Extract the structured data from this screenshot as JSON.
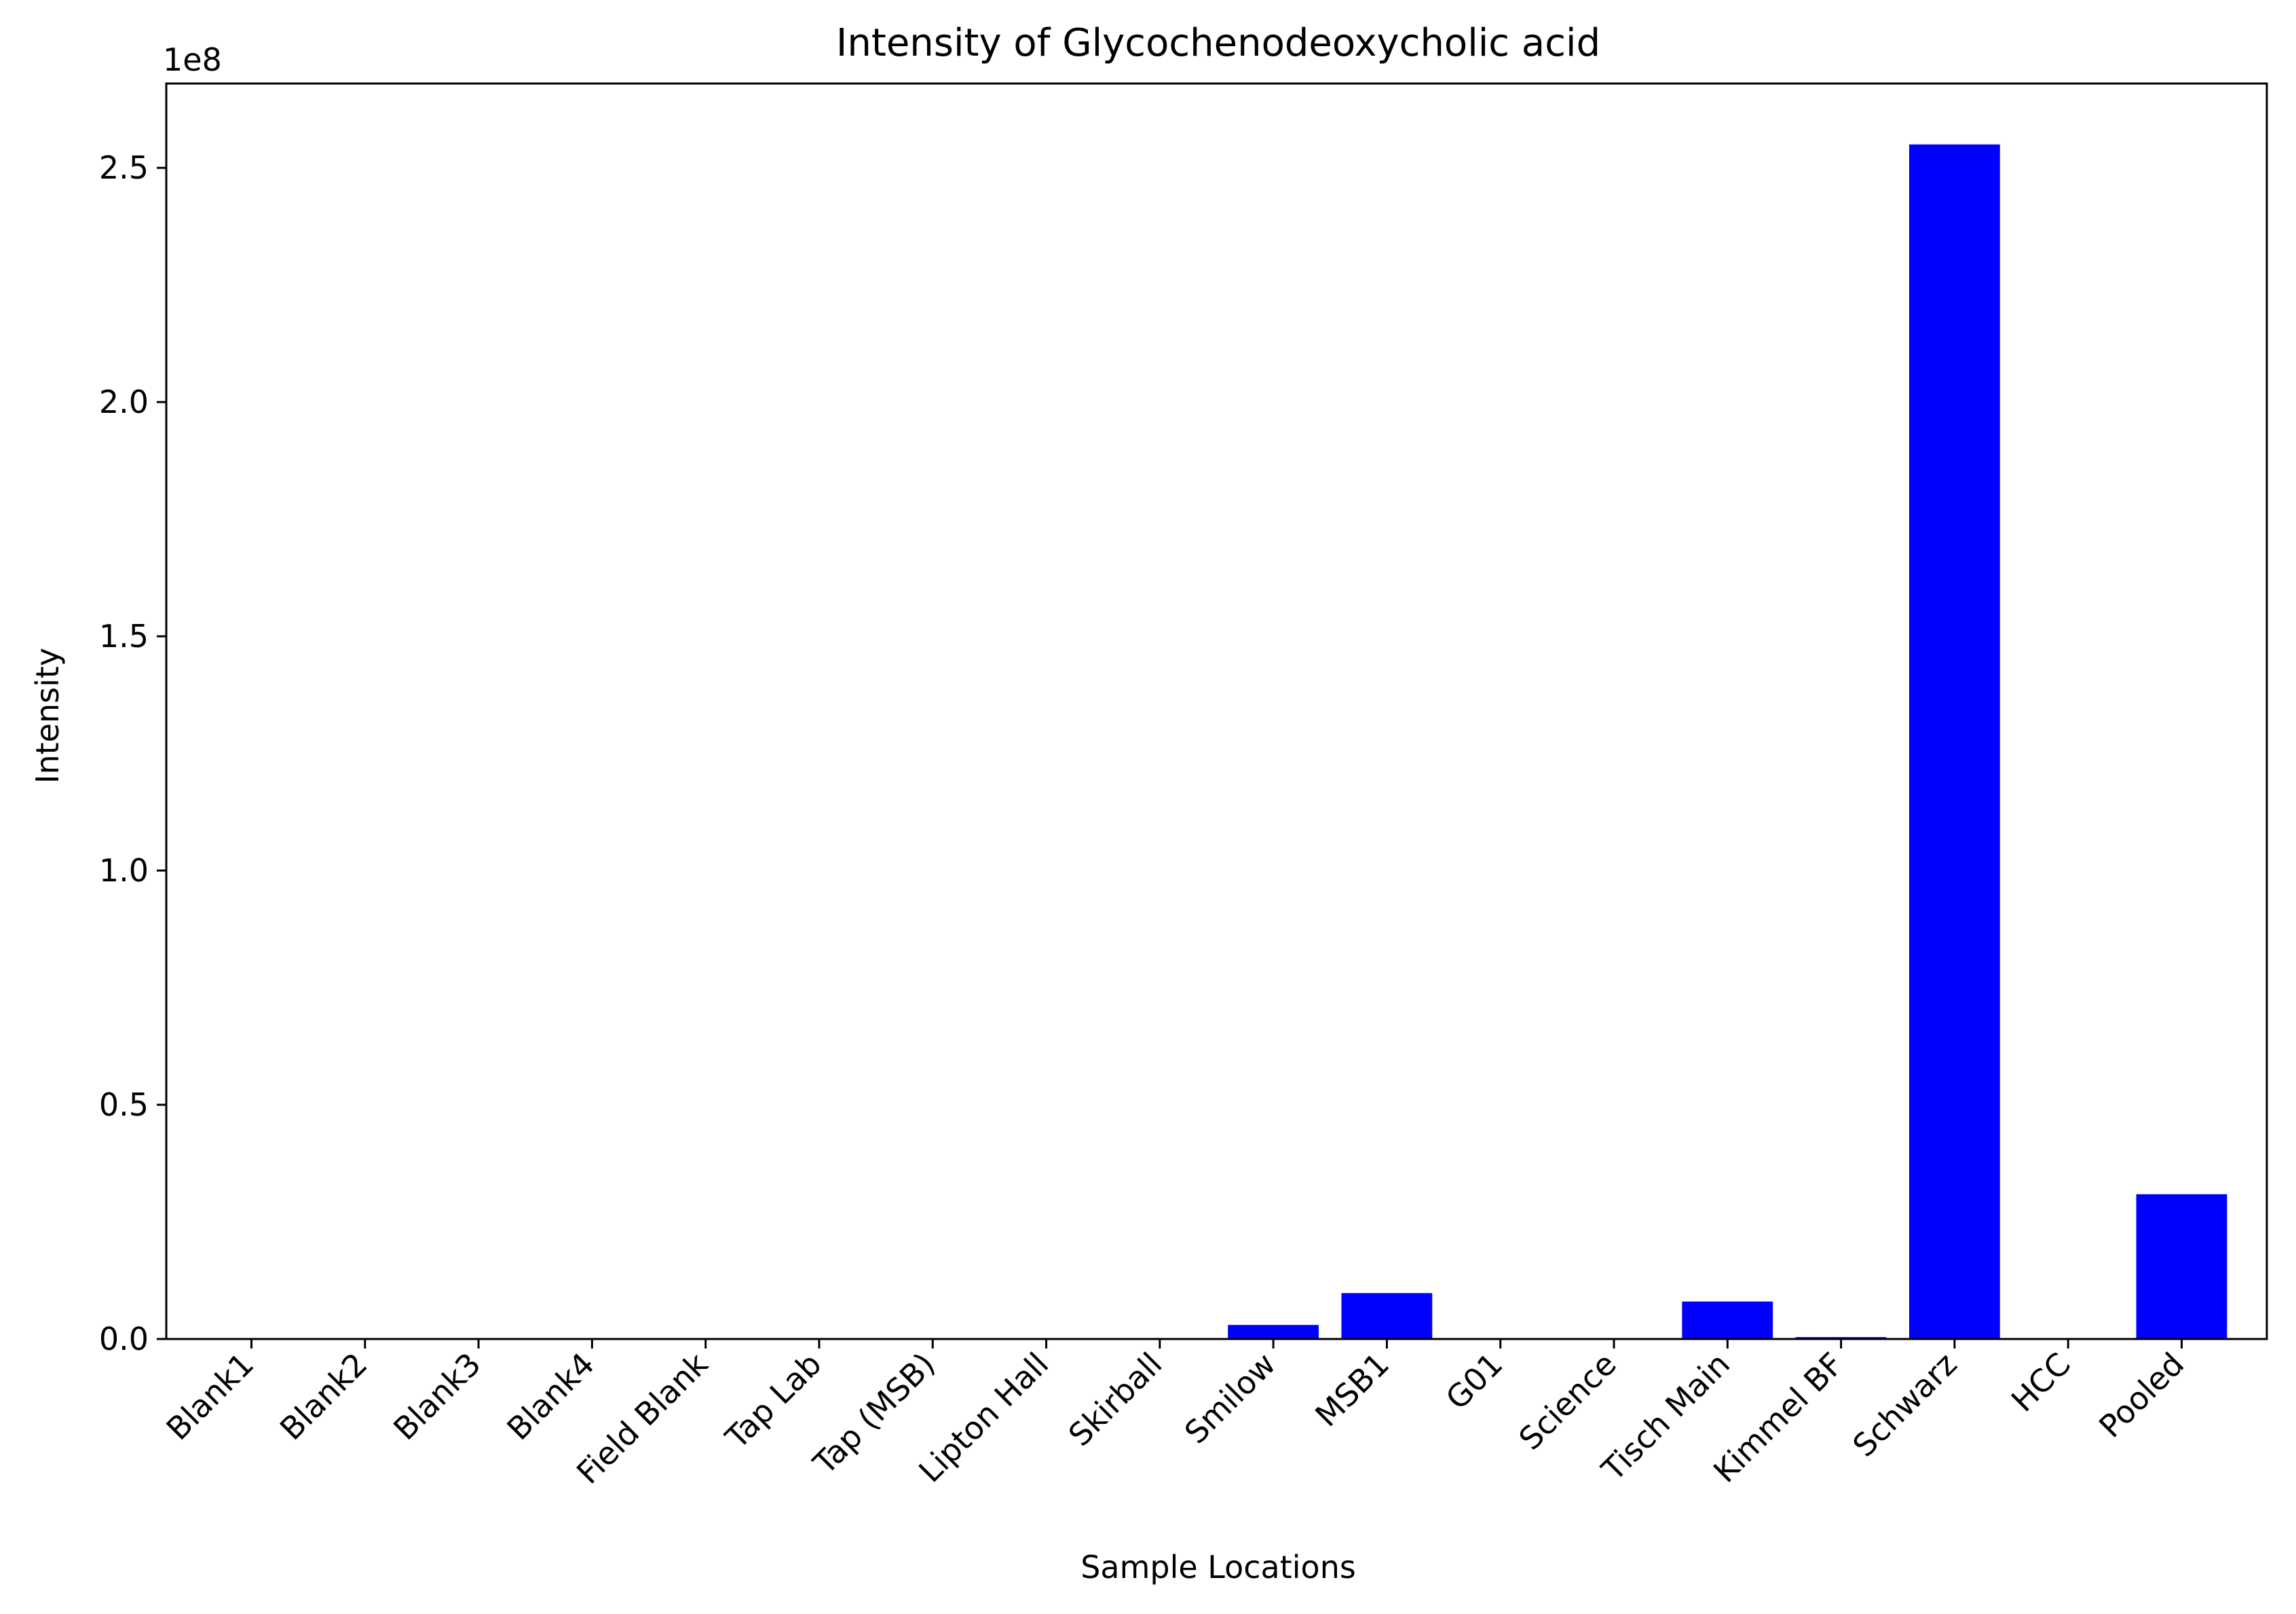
{
  "chart_data": {
    "type": "bar",
    "title": "Intensity of Glycochenodeoxycholic acid",
    "xlabel": "Sample Locations",
    "ylabel": "Intensity",
    "y_offset_label": "1e8",
    "ylim": [
      0,
      268000000.0
    ],
    "yticks": [
      0,
      50000000.0,
      100000000.0,
      150000000.0,
      200000000.0,
      250000000.0
    ],
    "ytick_labels": [
      "0.0",
      "0.5",
      "1.0",
      "1.5",
      "2.0",
      "2.5"
    ],
    "categories": [
      "Blank1",
      "Blank2",
      "Blank3",
      "Blank4",
      "Field Blank",
      "Tap Lab",
      "Tap (MSB)",
      "Lipton Hall",
      "Skirball",
      "Smilow",
      "MSB1",
      "G01",
      "Science",
      "Tisch Main",
      "Kimmel BF",
      "Schwarz",
      "HCC",
      "Pooled"
    ],
    "values": [
      0,
      0,
      0,
      0,
      0,
      0,
      0,
      0,
      0,
      3000000,
      9800000,
      0,
      0,
      8000000,
      400000,
      255000000,
      0,
      30900000
    ],
    "bar_color": "#0000ff",
    "grid": false,
    "legend": "none"
  }
}
